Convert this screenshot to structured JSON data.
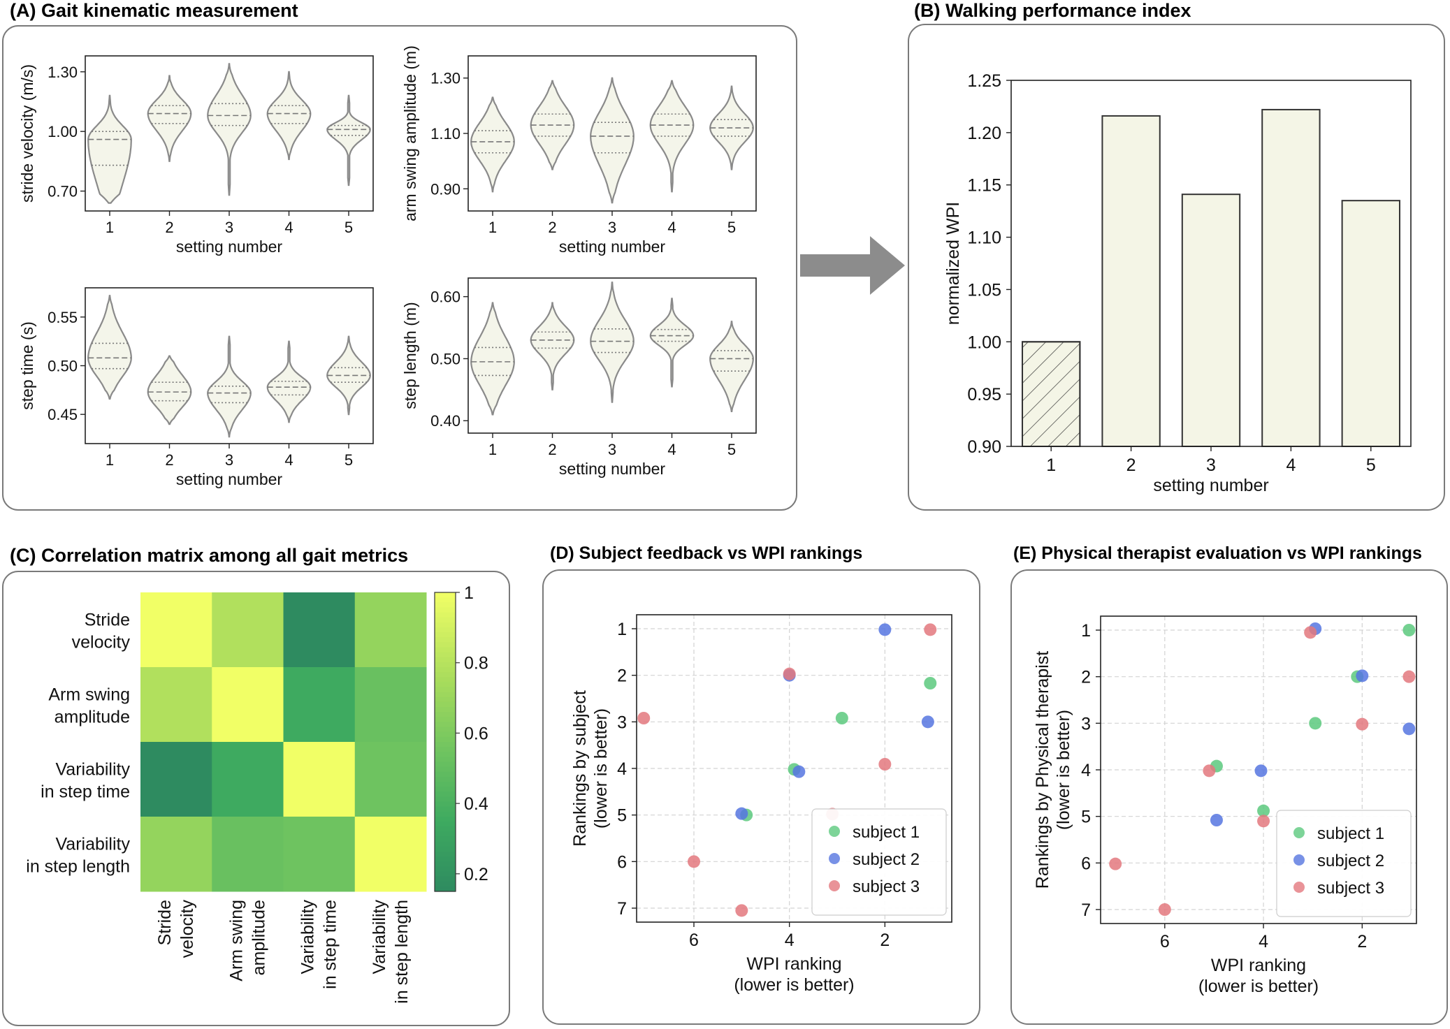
{
  "panel_titles": {
    "A": "(A)  Gait kinematic measurement",
    "B": "(B)  Walking performance index",
    "C": "(C)  Correlation matrix among all gait metrics",
    "D": "(D) Subject feedback vs WPI rankings",
    "E": "(E) Physical therapist evaluation vs WPI rankings"
  },
  "colors": {
    "violin_fill": "#f4f5ea",
    "violin_edge": "#8a8a8a",
    "bar_fill": "#f4f5e6",
    "subject1": "#5cc97e",
    "subject2": "#5676e0",
    "subject3": "#e3787e",
    "arrow": "#8c8c8c",
    "panel_border": "#7a7a7a"
  },
  "chart_data": [
    {
      "id": "stride_velocity",
      "type": "violin",
      "xlabel": "setting number",
      "ylabel": "stride velocity (m/s)",
      "categories": [
        "1",
        "2",
        "3",
        "4",
        "5"
      ],
      "ylim": [
        0.6,
        1.38
      ],
      "yticks": [
        "0.70",
        "1.00",
        "1.30"
      ],
      "ytick_values": [
        0.7,
        1.0,
        1.3
      ],
      "violins": [
        {
          "min": 0.64,
          "max": 1.18,
          "q1": 0.83,
          "median": 0.96,
          "q3": 1.0
        },
        {
          "min": 0.85,
          "max": 1.28,
          "q1": 1.04,
          "median": 1.09,
          "q3": 1.13
        },
        {
          "min": 0.68,
          "max": 1.34,
          "q1": 1.03,
          "median": 1.08,
          "q3": 1.14
        },
        {
          "min": 0.86,
          "max": 1.3,
          "q1": 1.04,
          "median": 1.09,
          "q3": 1.13
        },
        {
          "min": 0.73,
          "max": 1.18,
          "q1": 0.98,
          "median": 1.01,
          "q3": 1.03
        }
      ]
    },
    {
      "id": "arm_swing",
      "type": "violin",
      "xlabel": "setting number",
      "ylabel": "arm swing amplitude (m)",
      "categories": [
        "1",
        "2",
        "3",
        "4",
        "5"
      ],
      "ylim": [
        0.82,
        1.38
      ],
      "yticks": [
        "0.90",
        "1.10",
        "1.30"
      ],
      "ytick_values": [
        0.9,
        1.1,
        1.3
      ],
      "violins": [
        {
          "min": 0.89,
          "max": 1.23,
          "q1": 1.03,
          "median": 1.07,
          "q3": 1.11
        },
        {
          "min": 0.97,
          "max": 1.29,
          "q1": 1.09,
          "median": 1.13,
          "q3": 1.17
        },
        {
          "min": 0.85,
          "max": 1.3,
          "q1": 1.03,
          "median": 1.09,
          "q3": 1.14
        },
        {
          "min": 0.89,
          "max": 1.29,
          "q1": 1.09,
          "median": 1.13,
          "q3": 1.17
        },
        {
          "min": 0.97,
          "max": 1.27,
          "q1": 1.09,
          "median": 1.12,
          "q3": 1.15
        }
      ]
    },
    {
      "id": "step_time",
      "type": "violin",
      "xlabel": "setting number",
      "ylabel": "step time (s)",
      "categories": [
        "1",
        "2",
        "3",
        "4",
        "5"
      ],
      "ylim": [
        0.42,
        0.58
      ],
      "yticks": [
        "0.45",
        "0.50",
        "0.55"
      ],
      "ytick_values": [
        0.45,
        0.5,
        0.55
      ],
      "violins": [
        {
          "min": 0.466,
          "max": 0.572,
          "q1": 0.497,
          "median": 0.508,
          "q3": 0.523
        },
        {
          "min": 0.44,
          "max": 0.51,
          "q1": 0.464,
          "median": 0.473,
          "q3": 0.483
        },
        {
          "min": 0.427,
          "max": 0.53,
          "q1": 0.462,
          "median": 0.472,
          "q3": 0.479
        },
        {
          "min": 0.442,
          "max": 0.525,
          "q1": 0.47,
          "median": 0.478,
          "q3": 0.484
        },
        {
          "min": 0.45,
          "max": 0.53,
          "q1": 0.483,
          "median": 0.49,
          "q3": 0.498
        }
      ]
    },
    {
      "id": "step_length",
      "type": "violin",
      "xlabel": "setting number",
      "ylabel": "step length (m)",
      "categories": [
        "1",
        "2",
        "3",
        "4",
        "5"
      ],
      "ylim": [
        0.38,
        0.63
      ],
      "yticks": [
        "0.40",
        "0.50",
        "0.60"
      ],
      "ytick_values": [
        0.4,
        0.5,
        0.6
      ],
      "violins": [
        {
          "min": 0.41,
          "max": 0.59,
          "q1": 0.473,
          "median": 0.495,
          "q3": 0.518
        },
        {
          "min": 0.45,
          "max": 0.59,
          "q1": 0.517,
          "median": 0.53,
          "q3": 0.543
        },
        {
          "min": 0.43,
          "max": 0.623,
          "q1": 0.51,
          "median": 0.528,
          "q3": 0.548
        },
        {
          "min": 0.455,
          "max": 0.597,
          "q1": 0.528,
          "median": 0.537,
          "q3": 0.547
        },
        {
          "min": 0.415,
          "max": 0.56,
          "q1": 0.48,
          "median": 0.5,
          "q3": 0.513
        }
      ]
    },
    {
      "id": "wpi",
      "type": "bar",
      "xlabel": "setting number",
      "ylabel": "normalized WPI",
      "categories": [
        "1",
        "2",
        "3",
        "4",
        "5"
      ],
      "values": [
        1.0,
        1.216,
        1.141,
        1.222,
        1.135
      ],
      "hatched": [
        true,
        false,
        false,
        false,
        false
      ],
      "ylim": [
        0.9,
        1.25
      ],
      "yticks": [
        "0.90",
        "0.95",
        "1.00",
        "1.05",
        "1.10",
        "1.15",
        "1.20",
        "1.25"
      ],
      "ytick_values": [
        0.9,
        0.95,
        1.0,
        1.05,
        1.1,
        1.15,
        1.2,
        1.25
      ]
    },
    {
      "id": "correlation",
      "type": "heatmap",
      "labels": [
        "Stride velocity",
        "Arm swing amplitude",
        "Variability in step time",
        "Variability in step length"
      ],
      "row_labels": [
        [
          "Stride",
          "velocity"
        ],
        [
          "Arm swing",
          "amplitude"
        ],
        [
          "Variability",
          "in step time"
        ],
        [
          "Variability",
          "in step length"
        ]
      ],
      "col_labels": [
        [
          "Stride",
          "velocity"
        ],
        [
          "Arm swing",
          "amplitude"
        ],
        [
          "Variability",
          "in step time"
        ],
        [
          "Variability",
          "in step length"
        ]
      ],
      "matrix": [
        [
          1.0,
          0.78,
          0.15,
          0.68
        ],
        [
          0.78,
          1.0,
          0.35,
          0.52
        ],
        [
          0.15,
          0.35,
          1.0,
          0.54
        ],
        [
          0.68,
          0.52,
          0.54,
          1.0
        ]
      ],
      "colorbar_ticks": [
        "1",
        "0.8",
        "0.6",
        "0.4",
        "0.2"
      ],
      "colorbar_values": [
        1.0,
        0.8,
        0.6,
        0.4,
        0.2
      ],
      "vmin": 0.15,
      "vmax": 1.0
    },
    {
      "id": "subject_feedback",
      "type": "scatter",
      "xlabel": [
        "WPI ranking",
        "(lower is better)"
      ],
      "ylabel": [
        "Rankings by subject",
        "(lower is better)"
      ],
      "xlim": [
        7.2,
        0.6
      ],
      "ylim": [
        7.3,
        0.7
      ],
      "xticks": [
        "6",
        "4",
        "2"
      ],
      "xtick_values": [
        6,
        4,
        2
      ],
      "yticks": [
        "1",
        "2",
        "3",
        "4",
        "5",
        "6",
        "7"
      ],
      "ytick_values": [
        1,
        2,
        3,
        4,
        5,
        6,
        7
      ],
      "series": [
        {
          "name": "subject 1",
          "x": [
            1.05,
            2.9,
            3.9,
            4.9
          ],
          "y": [
            2.17,
            2.92,
            4.02,
            5.0
          ]
        },
        {
          "name": "subject 2",
          "x": [
            2.0,
            4.0,
            1.1,
            3.8,
            5.0
          ],
          "y": [
            1.02,
            2.0,
            3.0,
            4.07,
            4.97
          ]
        },
        {
          "name": "subject 3",
          "x": [
            1.05,
            4.0,
            7.05,
            2.0,
            3.1,
            6.0,
            5.0
          ],
          "y": [
            1.02,
            1.97,
            2.92,
            3.91,
            4.98,
            6.0,
            7.05
          ]
        }
      ],
      "legend": [
        "subject 1",
        "subject 2",
        "subject 3"
      ]
    },
    {
      "id": "therapist",
      "type": "scatter",
      "xlabel": [
        "WPI ranking",
        "(lower is better)"
      ],
      "ylabel": [
        "Rankings by Physical therapist",
        "(lower is better)"
      ],
      "xlim": [
        7.3,
        0.9
      ],
      "ylim": [
        7.3,
        0.7
      ],
      "xticks": [
        "6",
        "4",
        "2"
      ],
      "xtick_values": [
        6,
        4,
        2
      ],
      "yticks": [
        "1",
        "2",
        "3",
        "4",
        "5",
        "6",
        "7"
      ],
      "ytick_values": [
        1,
        2,
        3,
        4,
        5,
        6,
        7
      ],
      "series": [
        {
          "name": "subject 1",
          "x": [
            1.05,
            2.1,
            2.95,
            4.95,
            4.0
          ],
          "y": [
            1.0,
            2.0,
            3.0,
            3.92,
            4.88
          ]
        },
        {
          "name": "subject 2",
          "x": [
            2.95,
            2.0,
            1.05,
            4.05,
            4.95
          ],
          "y": [
            0.97,
            1.98,
            3.12,
            4.02,
            5.08
          ]
        },
        {
          "name": "subject 3",
          "x": [
            3.05,
            1.05,
            2.0,
            5.1,
            4.0,
            7.0,
            6.0
          ],
          "y": [
            1.05,
            2.0,
            3.02,
            4.02,
            5.1,
            6.02,
            7.0
          ]
        }
      ],
      "legend": [
        "subject 1",
        "subject 2",
        "subject 3"
      ]
    }
  ]
}
